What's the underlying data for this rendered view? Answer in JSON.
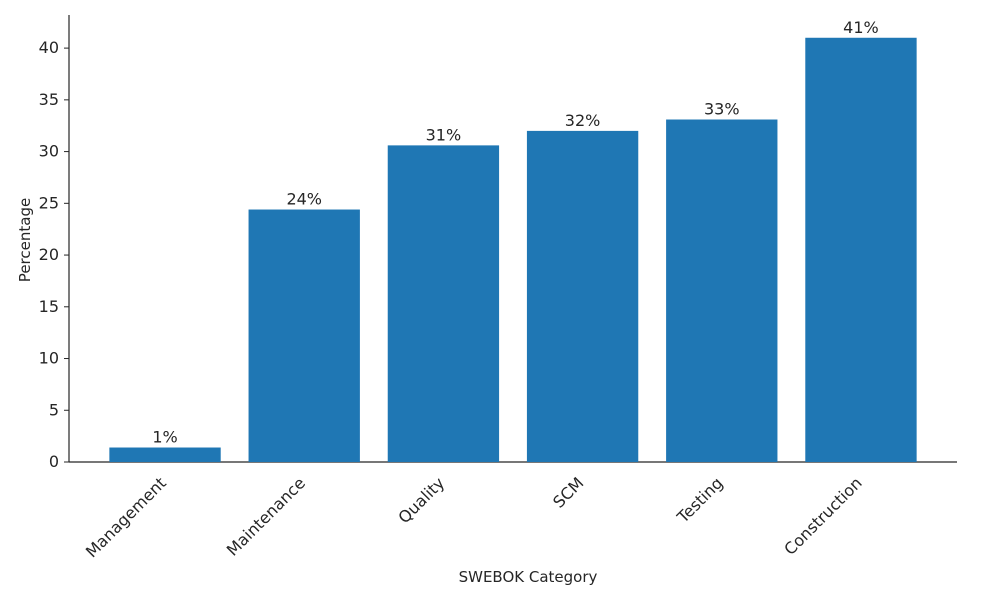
{
  "chart_data": {
    "type": "bar",
    "xlabel": "SWEBOK Category",
    "ylabel": "Percentage",
    "categories": [
      "Management",
      "Maintenance",
      "Quality",
      "SCM",
      "Testing",
      "Construction"
    ],
    "values": [
      1.4,
      24.4,
      30.6,
      32.0,
      33.1,
      41.0
    ],
    "value_labels": [
      "1%",
      "24%",
      "31%",
      "32%",
      "33%",
      "41%"
    ],
    "color": "#1f77b4",
    "ylim": [
      0,
      43.2
    ],
    "yticks": [
      0,
      5,
      10,
      15,
      20,
      25,
      30,
      35,
      40
    ],
    "grid": false
  }
}
